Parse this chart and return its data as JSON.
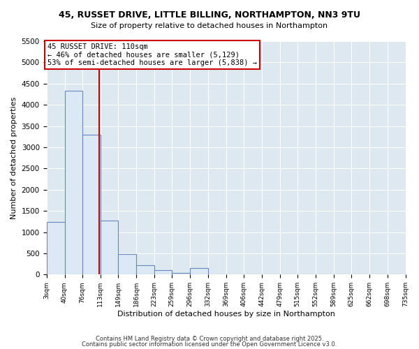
{
  "title": "45, RUSSET DRIVE, LITTLE BILLING, NORTHAMPTON, NN3 9TU",
  "subtitle": "Size of property relative to detached houses in Northampton",
  "xlabel": "Distribution of detached houses by size in Northampton",
  "ylabel": "Number of detached properties",
  "fig_bg_color": "#ffffff",
  "plot_bg_color": "#dde8f0",
  "bar_color": "#dce8f5",
  "bar_edge_color": "#6688bb",
  "grid_color": "#ffffff",
  "annotation_line_color": "#cc0000",
  "annotation_box_edge_color": "#cc0000",
  "property_size": 110,
  "annotation_text": "45 RUSSET DRIVE: 110sqm\n← 46% of detached houses are smaller (5,129)\n53% of semi-detached houses are larger (5,838) →",
  "footnote1": "Contains HM Land Registry data © Crown copyright and database right 2025.",
  "footnote2": "Contains public sector information licensed under the Open Government Licence v3.0.",
  "bin_edges": [
    3,
    40,
    76,
    113,
    149,
    186,
    223,
    259,
    296,
    332,
    369,
    406,
    442,
    479,
    515,
    552,
    589,
    625,
    662,
    698,
    735
  ],
  "bin_labels": [
    "3sqm",
    "40sqm",
    "76sqm",
    "113sqm",
    "149sqm",
    "186sqm",
    "223sqm",
    "259sqm",
    "296sqm",
    "332sqm",
    "369sqm",
    "406sqm",
    "442sqm",
    "479sqm",
    "515sqm",
    "552sqm",
    "589sqm",
    "625sqm",
    "662sqm",
    "698sqm",
    "735sqm"
  ],
  "counts": [
    1240,
    4330,
    3290,
    1270,
    490,
    220,
    100,
    40,
    150,
    0,
    0,
    0,
    0,
    0,
    0,
    0,
    0,
    0,
    0,
    0
  ],
  "ylim": [
    0,
    5500
  ],
  "yticks": [
    0,
    500,
    1000,
    1500,
    2000,
    2500,
    3000,
    3500,
    4000,
    4500,
    5000,
    5500
  ]
}
